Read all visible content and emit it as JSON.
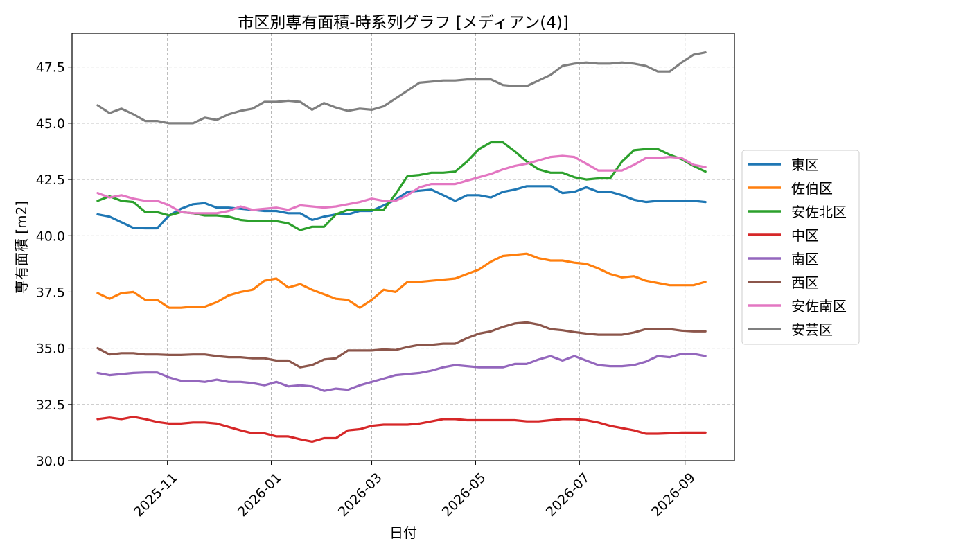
{
  "chart_data": {
    "type": "line",
    "title": "市区別専有面積-時系列グラフ [メディアン(4)]",
    "xlabel": "日付",
    "ylabel": "専有面積 [m2]",
    "ylim": [
      30.0,
      49.0
    ],
    "xlim": [
      "2025-09-06",
      "2026-09-30"
    ],
    "y_ticks": [
      "30.0",
      "32.5",
      "35.0",
      "37.5",
      "40.0",
      "42.5",
      "45.0",
      "47.5"
    ],
    "y_tick_values": [
      30.0,
      32.5,
      35.0,
      37.5,
      40.0,
      42.5,
      45.0,
      47.5
    ],
    "x_ticks": [
      "2025-11",
      "2026-01",
      "2026-03",
      "2026-05",
      "2026-07",
      "2026-09"
    ],
    "x_tick_dates": [
      "2025-11-01",
      "2026-01-01",
      "2026-03-01",
      "2026-05-01",
      "2026-07-01",
      "2026-09-01"
    ],
    "grid": true,
    "legend_position": "right outside",
    "x": [
      "2025-09-21",
      "2025-09-28",
      "2025-10-05",
      "2025-10-12",
      "2025-10-19",
      "2025-10-26",
      "2025-11-02",
      "2025-11-09",
      "2025-11-16",
      "2025-11-23",
      "2025-11-30",
      "2025-12-07",
      "2025-12-14",
      "2025-12-21",
      "2025-12-28",
      "2026-01-04",
      "2026-01-11",
      "2026-01-18",
      "2026-01-25",
      "2026-02-01",
      "2026-02-08",
      "2026-02-15",
      "2026-02-22",
      "2026-03-01",
      "2026-03-08",
      "2026-03-15",
      "2026-03-22",
      "2026-03-29",
      "2026-04-05",
      "2026-04-12",
      "2026-04-19",
      "2026-04-26",
      "2026-05-03",
      "2026-05-10",
      "2026-05-17",
      "2026-05-24",
      "2026-05-31",
      "2026-06-07",
      "2026-06-14",
      "2026-06-21",
      "2026-06-28",
      "2026-07-05",
      "2026-07-12",
      "2026-07-19",
      "2026-07-26",
      "2026-08-02",
      "2026-08-09",
      "2026-08-16",
      "2026-08-23",
      "2026-08-30",
      "2026-09-06",
      "2026-09-13"
    ],
    "series": [
      {
        "name": "東区",
        "color": "#1f77b4",
        "values": [
          40.95,
          40.85,
          40.6,
          40.35,
          40.33,
          40.33,
          40.9,
          41.2,
          41.4,
          41.45,
          41.25,
          41.25,
          41.2,
          41.15,
          41.1,
          41.1,
          41.0,
          41.0,
          40.7,
          40.85,
          40.95,
          40.95,
          41.1,
          41.1,
          41.35,
          41.6,
          41.95,
          42.0,
          42.05,
          41.8,
          41.55,
          41.8,
          41.8,
          41.7,
          41.95,
          42.05,
          42.2,
          42.2,
          42.2,
          41.9,
          41.95,
          42.15,
          41.95,
          41.95,
          41.8,
          41.6,
          41.5,
          41.55,
          41.55,
          41.55,
          41.55,
          41.5
        ]
      },
      {
        "name": "佐伯区",
        "color": "#ff7f0e",
        "values": [
          37.45,
          37.2,
          37.45,
          37.5,
          37.15,
          37.15,
          36.8,
          36.8,
          36.85,
          36.85,
          37.05,
          37.35,
          37.5,
          37.6,
          38.0,
          38.1,
          37.7,
          37.85,
          37.6,
          37.4,
          37.2,
          37.15,
          36.8,
          37.15,
          37.6,
          37.5,
          37.95,
          37.95,
          38.0,
          38.05,
          38.1,
          38.3,
          38.5,
          38.85,
          39.1,
          39.15,
          39.2,
          39.0,
          38.9,
          38.9,
          38.8,
          38.75,
          38.55,
          38.3,
          38.15,
          38.2,
          38.0,
          37.9,
          37.8,
          37.8,
          37.8,
          37.95
        ]
      },
      {
        "name": "安佐北区",
        "color": "#2ca02c",
        "values": [
          41.55,
          41.75,
          41.55,
          41.5,
          41.05,
          41.05,
          40.9,
          41.05,
          41.0,
          40.9,
          40.9,
          40.85,
          40.7,
          40.65,
          40.65,
          40.65,
          40.55,
          40.25,
          40.4,
          40.4,
          40.95,
          41.15,
          41.15,
          41.15,
          41.15,
          41.85,
          42.65,
          42.7,
          42.8,
          42.8,
          42.85,
          43.3,
          43.85,
          44.15,
          44.15,
          43.75,
          43.3,
          42.95,
          42.8,
          42.8,
          42.6,
          42.5,
          42.55,
          42.55,
          43.3,
          43.8,
          43.85,
          43.85,
          43.6,
          43.4,
          43.1,
          42.85
        ]
      },
      {
        "name": "中区",
        "color": "#d62728",
        "values": [
          31.85,
          31.92,
          31.85,
          31.95,
          31.85,
          31.72,
          31.65,
          31.65,
          31.7,
          31.7,
          31.65,
          31.5,
          31.35,
          31.22,
          31.22,
          31.08,
          31.08,
          30.95,
          30.85,
          31.0,
          31.0,
          31.35,
          31.4,
          31.55,
          31.6,
          31.6,
          31.6,
          31.65,
          31.75,
          31.85,
          31.85,
          31.8,
          31.8,
          31.8,
          31.8,
          31.8,
          31.75,
          31.75,
          31.8,
          31.85,
          31.85,
          31.8,
          31.7,
          31.55,
          31.45,
          31.35,
          31.2,
          31.2,
          31.22,
          31.25,
          31.25,
          31.25
        ]
      },
      {
        "name": "南区",
        "color": "#9467bd",
        "values": [
          33.9,
          33.8,
          33.85,
          33.9,
          33.92,
          33.92,
          33.7,
          33.55,
          33.55,
          33.5,
          33.6,
          33.5,
          33.5,
          33.45,
          33.35,
          33.5,
          33.3,
          33.35,
          33.3,
          33.1,
          33.2,
          33.15,
          33.35,
          33.5,
          33.65,
          33.8,
          33.85,
          33.9,
          34.0,
          34.15,
          34.25,
          34.2,
          34.15,
          34.15,
          34.15,
          34.3,
          34.3,
          34.5,
          34.65,
          34.45,
          34.65,
          34.45,
          34.25,
          34.2,
          34.2,
          34.25,
          34.4,
          34.65,
          34.6,
          34.75,
          34.75,
          34.65
        ]
      },
      {
        "name": "西区",
        "color": "#8c564b",
        "values": [
          35.0,
          34.72,
          34.78,
          34.78,
          34.72,
          34.72,
          34.7,
          34.7,
          34.72,
          34.72,
          34.65,
          34.6,
          34.6,
          34.55,
          34.55,
          34.45,
          34.45,
          34.15,
          34.25,
          34.5,
          34.55,
          34.9,
          34.9,
          34.9,
          34.95,
          34.92,
          35.05,
          35.15,
          35.15,
          35.2,
          35.2,
          35.45,
          35.65,
          35.75,
          35.95,
          36.1,
          36.15,
          36.05,
          35.85,
          35.8,
          35.72,
          35.65,
          35.6,
          35.6,
          35.6,
          35.7,
          35.85,
          35.85,
          35.85,
          35.78,
          35.75,
          35.75
        ]
      },
      {
        "name": "安佐南区",
        "color": "#e377c2",
        "values": [
          41.9,
          41.7,
          41.8,
          41.65,
          41.55,
          41.55,
          41.35,
          41.05,
          41.0,
          41.0,
          41.0,
          41.1,
          41.3,
          41.15,
          41.2,
          41.25,
          41.15,
          41.35,
          41.3,
          41.25,
          41.3,
          41.4,
          41.5,
          41.65,
          41.55,
          41.55,
          41.8,
          42.15,
          42.3,
          42.3,
          42.3,
          42.45,
          42.6,
          42.75,
          42.95,
          43.1,
          43.2,
          43.35,
          43.5,
          43.55,
          43.5,
          43.2,
          42.9,
          42.9,
          42.9,
          43.15,
          43.45,
          43.45,
          43.5,
          43.45,
          43.15,
          43.05
        ]
      },
      {
        "name": "安芸区",
        "color": "#7f7f7f",
        "values": [
          45.8,
          45.45,
          45.65,
          45.4,
          45.1,
          45.1,
          45.0,
          45.0,
          45.0,
          45.25,
          45.15,
          45.4,
          45.55,
          45.65,
          45.95,
          45.95,
          46.0,
          45.95,
          45.6,
          45.9,
          45.7,
          45.55,
          45.65,
          45.6,
          45.75,
          46.1,
          46.45,
          46.8,
          46.85,
          46.9,
          46.9,
          46.95,
          46.95,
          46.95,
          46.7,
          46.65,
          46.65,
          46.9,
          47.15,
          47.55,
          47.65,
          47.7,
          47.65,
          47.65,
          47.7,
          47.65,
          47.55,
          47.3,
          47.3,
          47.7,
          48.05,
          48.15
        ]
      }
    ]
  }
}
